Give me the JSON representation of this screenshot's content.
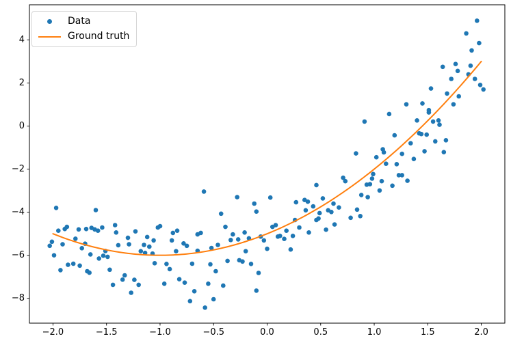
{
  "figure": {
    "background": "#ffffff"
  },
  "chart_data": {
    "type": "scatter",
    "title": "",
    "xlabel": "",
    "ylabel": "",
    "grid": false,
    "xlim": [
      -2.22,
      2.22
    ],
    "ylim": [
      -9.15,
      5.63
    ],
    "x_ticks": [
      -2.0,
      -1.5,
      -1.0,
      -0.5,
      0.0,
      0.5,
      1.0,
      1.5,
      2.0
    ],
    "x_tick_labels": [
      "−2.0",
      "−1.5",
      "−1.0",
      "−0.5",
      "0.0",
      "0.5",
      "1.0",
      "1.5",
      "2.0"
    ],
    "y_ticks": [
      -8,
      -6,
      -4,
      -2,
      0,
      2,
      4
    ],
    "y_tick_labels": [
      "−8",
      "−6",
      "−4",
      "−2",
      "0",
      "2",
      "4"
    ],
    "colors": {
      "scatter": "#1f77b4",
      "line": "#ff7f0e",
      "spine": "#000000",
      "tick_label": "#000000"
    },
    "legend": {
      "position": "upper-left",
      "items": [
        {
          "label": "Data",
          "type": "marker",
          "color": "#1f77b4"
        },
        {
          "label": "Ground truth",
          "type": "line",
          "color": "#ff7f0e"
        }
      ]
    },
    "series": [
      {
        "name": "Data",
        "type": "scatter",
        "color": "#1f77b4",
        "marker_radius": 3.3,
        "points": [
          [
            1.96,
            4.89
          ],
          [
            1.86,
            4.3
          ],
          [
            1.98,
            3.85
          ],
          [
            1.91,
            3.51
          ],
          [
            1.64,
            2.75
          ],
          [
            1.76,
            2.88
          ],
          [
            1.78,
            2.56
          ],
          [
            1.9,
            2.8
          ],
          [
            1.88,
            2.4
          ],
          [
            1.72,
            2.19
          ],
          [
            1.94,
            2.19
          ],
          [
            1.99,
            1.91
          ],
          [
            2.02,
            1.7
          ],
          [
            1.53,
            1.74
          ],
          [
            1.68,
            1.51
          ],
          [
            1.79,
            1.38
          ],
          [
            1.3,
            1.01
          ],
          [
            1.45,
            1.05
          ],
          [
            1.74,
            1.01
          ],
          [
            1.51,
            0.74
          ],
          [
            1.14,
            0.56
          ],
          [
            1.51,
            0.63
          ],
          [
            0.91,
            0.21
          ],
          [
            1.4,
            0.26
          ],
          [
            1.55,
            0.21
          ],
          [
            1.6,
            0.26
          ],
          [
            1.61,
            0.06
          ],
          [
            1.19,
            -0.43
          ],
          [
            1.42,
            -0.34
          ],
          [
            1.44,
            -0.37
          ],
          [
            1.49,
            -0.4
          ],
          [
            1.67,
            -0.66
          ],
          [
            1.57,
            -0.71
          ],
          [
            1.34,
            -0.8
          ],
          [
            1.08,
            -1.08
          ],
          [
            1.09,
            -1.22
          ],
          [
            0.83,
            -1.27
          ],
          [
            1.02,
            -1.45
          ],
          [
            1.26,
            -1.29
          ],
          [
            1.47,
            -1.17
          ],
          [
            1.65,
            -1.21
          ],
          [
            1.37,
            -1.53
          ],
          [
            1.11,
            -1.75
          ],
          [
            1.21,
            -1.77
          ],
          [
            1.23,
            -2.28
          ],
          [
            1.26,
            -2.28
          ],
          [
            1.31,
            -2.54
          ],
          [
            0.99,
            -2.23
          ],
          [
            0.98,
            -2.44
          ],
          [
            0.93,
            -2.72
          ],
          [
            0.96,
            -2.7
          ],
          [
            1.07,
            -2.56
          ],
          [
            1.17,
            -2.77
          ],
          [
            1.05,
            -2.99
          ],
          [
            0.88,
            -3.2
          ],
          [
            0.94,
            -3.3
          ],
          [
            0.84,
            -3.88
          ],
          [
            0.87,
            -4.18
          ],
          [
            0.78,
            -4.26
          ],
          [
            -0.59,
            -3.04
          ],
          [
            -0.28,
            -3.3
          ],
          [
            0.03,
            -3.32
          ],
          [
            -0.12,
            -3.6
          ],
          [
            -0.1,
            -3.97
          ],
          [
            -0.43,
            -4.07
          ],
          [
            0.27,
            -3.54
          ],
          [
            0.35,
            -3.43
          ],
          [
            0.38,
            -3.51
          ],
          [
            0.43,
            -3.73
          ],
          [
            0.36,
            -3.91
          ],
          [
            0.46,
            -2.74
          ],
          [
            0.52,
            -3.36
          ],
          [
            0.49,
            -4.04
          ],
          [
            0.62,
            -3.6
          ],
          [
            0.71,
            -2.4
          ],
          [
            0.73,
            -2.56
          ],
          [
            0.67,
            -3.78
          ],
          [
            0.57,
            -3.91
          ],
          [
            0.6,
            -3.99
          ],
          [
            -1.97,
            -3.8
          ],
          [
            -1.6,
            -3.9
          ],
          [
            -1.95,
            -4.86
          ],
          [
            -1.89,
            -4.78
          ],
          [
            -1.87,
            -4.68
          ],
          [
            -1.76,
            -4.8
          ],
          [
            -1.69,
            -4.78
          ],
          [
            -1.64,
            -4.73
          ],
          [
            -1.61,
            -4.8
          ],
          [
            -1.58,
            -4.86
          ],
          [
            -1.54,
            -4.71
          ],
          [
            -1.42,
            -4.6
          ],
          [
            -1.41,
            -4.94
          ],
          [
            -2.01,
            -5.37
          ],
          [
            -2.03,
            -5.56
          ],
          [
            -1.99,
            -6.0
          ],
          [
            -1.91,
            -5.49
          ],
          [
            -1.79,
            -5.23
          ],
          [
            -1.73,
            -5.67
          ],
          [
            -1.7,
            -5.46
          ],
          [
            -1.65,
            -5.96
          ],
          [
            -1.57,
            -6.15
          ],
          [
            -1.53,
            -6.02
          ],
          [
            -1.51,
            -5.8
          ],
          [
            -1.49,
            -6.07
          ],
          [
            -1.39,
            -5.53
          ],
          [
            -1.3,
            -5.19
          ],
          [
            -1.29,
            -5.49
          ],
          [
            -1.23,
            -4.89
          ],
          [
            -1.15,
            -5.52
          ],
          [
            -1.12,
            -5.15
          ],
          [
            -1.1,
            -5.6
          ],
          [
            -1.06,
            -5.31
          ],
          [
            -1.02,
            -4.71
          ],
          [
            -1.0,
            -4.65
          ],
          [
            -0.88,
            -4.96
          ],
          [
            -0.89,
            -5.31
          ],
          [
            -0.84,
            -4.86
          ],
          [
            -0.78,
            -5.45
          ],
          [
            -0.75,
            -5.56
          ],
          [
            -1.18,
            -5.81
          ],
          [
            -1.14,
            -5.89
          ],
          [
            -1.07,
            -5.92
          ],
          [
            -0.85,
            -5.81
          ],
          [
            -1.93,
            -6.69
          ],
          [
            -1.86,
            -6.44
          ],
          [
            -1.81,
            -6.39
          ],
          [
            -1.75,
            -6.48
          ],
          [
            -1.68,
            -6.74
          ],
          [
            -1.66,
            -6.81
          ],
          [
            -1.47,
            -6.67
          ],
          [
            -1.05,
            -6.37
          ],
          [
            -0.94,
            -6.4
          ],
          [
            -0.91,
            -6.64
          ],
          [
            -0.82,
            -7.11
          ],
          [
            -0.77,
            -7.27
          ],
          [
            -1.44,
            -7.37
          ],
          [
            -1.35,
            -7.13
          ],
          [
            -1.33,
            -6.93
          ],
          [
            -1.27,
            -7.74
          ],
          [
            -1.24,
            -7.14
          ],
          [
            -1.2,
            -7.37
          ],
          [
            -0.96,
            -7.32
          ],
          [
            -0.72,
            -8.13
          ],
          [
            -0.7,
            -6.39
          ],
          [
            -0.68,
            -7.67
          ],
          [
            -0.65,
            -5.03
          ],
          [
            -0.65,
            -5.79
          ],
          [
            -0.62,
            -4.96
          ],
          [
            -0.58,
            -8.43
          ],
          [
            -0.55,
            -7.32
          ],
          [
            -0.53,
            -6.42
          ],
          [
            -0.52,
            -5.66
          ],
          [
            -0.5,
            -8.04
          ],
          [
            -0.48,
            -6.74
          ],
          [
            -0.46,
            -5.52
          ],
          [
            -0.41,
            -7.41
          ],
          [
            -0.39,
            -4.68
          ],
          [
            -0.37,
            -6.26
          ],
          [
            -0.34,
            -5.29
          ],
          [
            -0.32,
            -5.03
          ],
          [
            -0.27,
            -5.26
          ],
          [
            -0.26,
            -6.23
          ],
          [
            -0.23,
            -6.29
          ],
          [
            -0.21,
            -4.94
          ],
          [
            -0.2,
            -5.81
          ],
          [
            -0.17,
            -5.21
          ],
          [
            -0.15,
            -6.4
          ],
          [
            -0.1,
            -7.64
          ],
          [
            -0.08,
            -6.82
          ],
          [
            -0.06,
            -5.13
          ],
          [
            -0.03,
            -5.31
          ],
          [
            0.0,
            -5.7
          ],
          [
            0.05,
            -4.68
          ],
          [
            0.08,
            -4.6
          ],
          [
            0.1,
            -5.13
          ],
          [
            0.12,
            -5.1
          ],
          [
            0.16,
            -5.24
          ],
          [
            0.18,
            -4.86
          ],
          [
            0.22,
            -5.73
          ],
          [
            0.24,
            -5.1
          ],
          [
            0.26,
            -4.36
          ],
          [
            0.3,
            -4.71
          ],
          [
            0.39,
            -4.94
          ],
          [
            0.46,
            -4.36
          ],
          [
            0.48,
            -4.29
          ],
          [
            0.55,
            -4.81
          ],
          [
            0.63,
            -4.57
          ]
        ]
      },
      {
        "name": "Ground truth",
        "type": "line",
        "color": "#ff7f0e",
        "line_width": 2,
        "function": "quadratic",
        "coefficients": {
          "a": 1,
          "b": 2,
          "c": -5
        },
        "equation": "y = x^2 + 2x - 5",
        "x_range": [
          -2.0,
          2.0
        ]
      }
    ]
  }
}
